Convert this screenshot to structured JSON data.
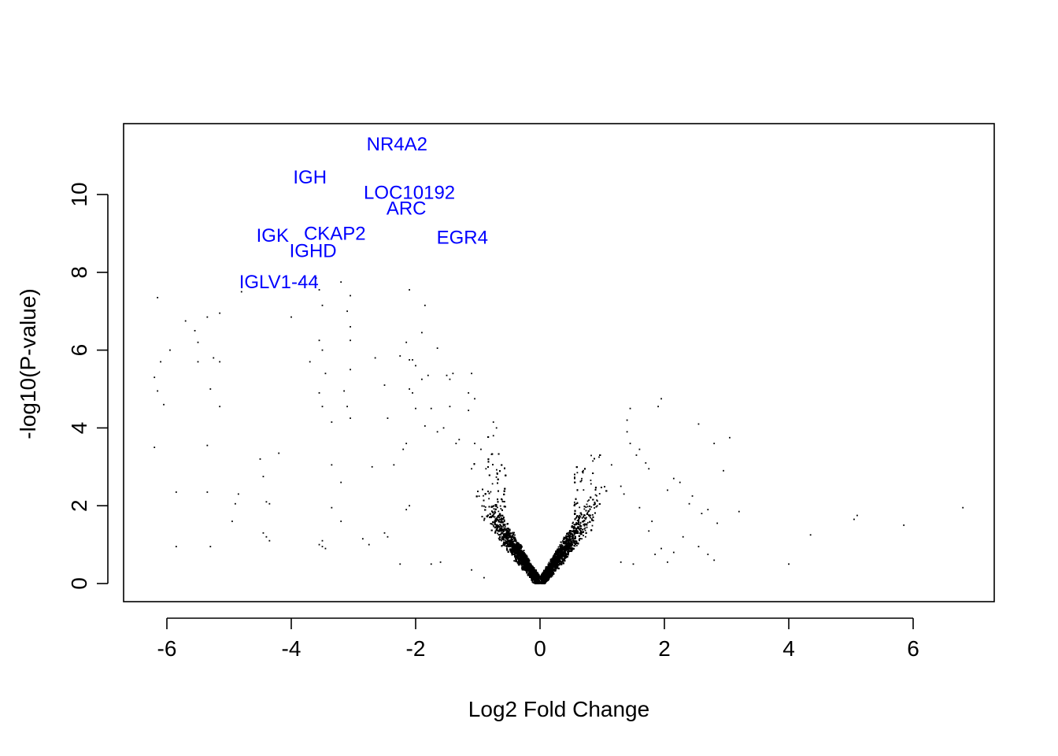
{
  "chart_data": {
    "type": "scatter",
    "title": "",
    "xlabel": "Log2 Fold Change",
    "ylabel": "-log10(P-value)",
    "xlim": [
      -6.6,
      7.3
    ],
    "ylim": [
      -0.45,
      11.8
    ],
    "x_ticks": [
      -6,
      -4,
      -2,
      0,
      2,
      4,
      6
    ],
    "y_ticks": [
      0,
      2,
      4,
      6,
      8,
      10
    ],
    "grid": false,
    "legend": "none",
    "point_color": "#000000",
    "label_color": "#0000ff",
    "labels": [
      {
        "text": "NR4A2",
        "x": -2.3,
        "y": 11.3
      },
      {
        "text": "IGH",
        "x": -3.7,
        "y": 10.45
      },
      {
        "text": "LOC10192",
        "x": -2.1,
        "y": 10.05
      },
      {
        "text": "ARC",
        "x": -2.15,
        "y": 9.65
      },
      {
        "text": "IGK",
        "x": -4.3,
        "y": 8.95
      },
      {
        "text": "CKAP2",
        "x": -3.3,
        "y": 9.0
      },
      {
        "text": "IGHD",
        "x": -3.65,
        "y": 8.55
      },
      {
        "text": "EGR4",
        "x": -1.25,
        "y": 8.9
      },
      {
        "text": "IGLV1-44",
        "x": -4.2,
        "y": 7.75
      }
    ],
    "sparse_points": [
      [
        -6.15,
        7.35
      ],
      [
        -5.7,
        6.75
      ],
      [
        -5.55,
        6.5
      ],
      [
        -5.5,
        6.2
      ],
      [
        -5.35,
        6.85
      ],
      [
        -5.15,
        6.95
      ],
      [
        -6.1,
        5.7
      ],
      [
        -5.95,
        6.0
      ],
      [
        -6.2,
        5.3
      ],
      [
        -6.15,
        4.95
      ],
      [
        -6.05,
        4.6
      ],
      [
        -5.5,
        5.7
      ],
      [
        -5.25,
        5.8
      ],
      [
        -5.15,
        5.7
      ],
      [
        -5.3,
        5.0
      ],
      [
        -5.15,
        4.55
      ],
      [
        -6.2,
        3.5
      ],
      [
        -5.35,
        3.55
      ],
      [
        -5.85,
        2.35
      ],
      [
        -5.35,
        2.35
      ],
      [
        -5.85,
        0.95
      ],
      [
        -5.3,
        0.95
      ],
      [
        -4.85,
        2.3
      ],
      [
        -4.9,
        2.05
      ],
      [
        -4.95,
        1.6
      ],
      [
        -4.45,
        2.75
      ],
      [
        -4.5,
        3.2
      ],
      [
        -4.2,
        3.35
      ],
      [
        -4.4,
        2.1
      ],
      [
        -4.35,
        2.05
      ],
      [
        -4.45,
        1.3
      ],
      [
        -4.4,
        1.2
      ],
      [
        -4.35,
        1.1
      ],
      [
        -4.8,
        7.5
      ],
      [
        -4.0,
        6.85
      ],
      [
        -3.85,
        7.75
      ],
      [
        -3.6,
        7.85
      ],
      [
        -3.55,
        7.55
      ],
      [
        -3.5,
        7.15
      ],
      [
        -3.55,
        6.25
      ],
      [
        -3.5,
        6.0
      ],
      [
        -3.7,
        5.7
      ],
      [
        -3.45,
        5.4
      ],
      [
        -3.55,
        4.9
      ],
      [
        -3.5,
        4.55
      ],
      [
        -3.35,
        4.15
      ],
      [
        -3.2,
        7.75
      ],
      [
        -3.05,
        7.4
      ],
      [
        -3.1,
        7.0
      ],
      [
        -3.05,
        6.6
      ],
      [
        -3.05,
        6.25
      ],
      [
        -3.05,
        5.5
      ],
      [
        -3.15,
        4.95
      ],
      [
        -3.1,
        4.55
      ],
      [
        -3.05,
        4.25
      ],
      [
        -3.35,
        3.05
      ],
      [
        -3.2,
        2.6
      ],
      [
        -3.35,
        1.95
      ],
      [
        -3.2,
        1.6
      ],
      [
        -3.55,
        1.0
      ],
      [
        -3.5,
        0.95
      ],
      [
        -3.45,
        0.9
      ],
      [
        -3.5,
        1.1
      ],
      [
        -2.85,
        1.15
      ],
      [
        -2.75,
        1.0
      ],
      [
        -2.7,
        3.0
      ],
      [
        -2.65,
        5.8
      ],
      [
        -2.5,
        5.1
      ],
      [
        -2.45,
        4.25
      ],
      [
        -2.35,
        3.05
      ],
      [
        -2.5,
        1.3
      ],
      [
        -2.45,
        1.2
      ],
      [
        -2.25,
        0.5
      ],
      [
        -2.2,
        3.45
      ],
      [
        -2.15,
        3.6
      ],
      [
        -2.25,
        5.85
      ],
      [
        -2.1,
        5.75
      ],
      [
        -2.0,
        5.6
      ],
      [
        -2.05,
        5.75
      ],
      [
        -2.15,
        6.2
      ],
      [
        -2.1,
        7.55
      ],
      [
        -1.85,
        7.15
      ],
      [
        -1.9,
        6.45
      ],
      [
        -1.65,
        6.05
      ],
      [
        -2.05,
        4.9
      ],
      [
        -2.1,
        5.0
      ],
      [
        -2.0,
        4.5
      ],
      [
        -1.9,
        5.25
      ],
      [
        -1.8,
        5.35
      ],
      [
        -1.5,
        5.35
      ],
      [
        -1.4,
        5.4
      ],
      [
        -1.45,
        5.25
      ],
      [
        -1.1,
        5.4
      ],
      [
        -1.75,
        4.5
      ],
      [
        -1.85,
        4.05
      ],
      [
        -2.1,
        2.0
      ],
      [
        -2.15,
        1.9
      ],
      [
        -1.65,
        3.9
      ],
      [
        -1.45,
        4.55
      ],
      [
        -1.55,
        4.0
      ],
      [
        -1.15,
        4.9
      ],
      [
        -1.05,
        4.75
      ],
      [
        -1.15,
        4.45
      ],
      [
        -0.75,
        4.15
      ],
      [
        -0.7,
        4.0
      ],
      [
        -0.75,
        3.8
      ],
      [
        -0.95,
        3.45
      ],
      [
        -1.3,
        3.7
      ],
      [
        -1.35,
        3.6
      ],
      [
        -1.05,
        3.6
      ],
      [
        -1.1,
        2.95
      ],
      [
        -0.9,
        0.15
      ],
      [
        -1.1,
        0.35
      ],
      [
        -1.6,
        0.55
      ],
      [
        -1.75,
        0.5
      ],
      [
        2.55,
        4.1
      ],
      [
        2.8,
        3.6
      ],
      [
        3.05,
        3.75
      ],
      [
        2.95,
        2.9
      ],
      [
        3.2,
        1.85
      ],
      [
        4.35,
        1.25
      ],
      [
        4.0,
        0.5
      ],
      [
        5.05,
        1.65
      ],
      [
        5.1,
        1.75
      ],
      [
        5.85,
        1.5
      ],
      [
        6.8,
        1.95
      ],
      [
        1.95,
        4.75
      ],
      [
        1.9,
        4.55
      ],
      [
        1.45,
        4.5
      ],
      [
        1.4,
        4.2
      ],
      [
        1.4,
        3.9
      ],
      [
        1.45,
        3.6
      ],
      [
        1.55,
        3.3
      ],
      [
        1.6,
        3.45
      ],
      [
        1.7,
        3.1
      ],
      [
        1.75,
        2.95
      ],
      [
        2.05,
        2.4
      ],
      [
        2.15,
        2.7
      ],
      [
        2.25,
        2.6
      ],
      [
        2.45,
        2.25
      ],
      [
        2.4,
        2.05
      ],
      [
        2.6,
        1.8
      ],
      [
        2.7,
        1.9
      ],
      [
        2.85,
        1.55
      ],
      [
        2.15,
        0.8
      ],
      [
        2.05,
        0.55
      ],
      [
        2.55,
        0.95
      ],
      [
        2.7,
        0.75
      ],
      [
        2.8,
        0.6
      ],
      [
        2.3,
        1.2
      ],
      [
        1.85,
        0.75
      ],
      [
        1.95,
        0.9
      ],
      [
        1.5,
        0.5
      ],
      [
        1.3,
        0.55
      ],
      [
        1.75,
        1.35
      ],
      [
        1.8,
        1.6
      ],
      [
        1.6,
        1.95
      ],
      [
        1.35,
        2.3
      ],
      [
        1.3,
        2.5
      ],
      [
        1.15,
        3.05
      ],
      [
        0.95,
        3.25
      ],
      [
        0.85,
        3.15
      ],
      [
        0.6,
        2.85
      ]
    ]
  }
}
